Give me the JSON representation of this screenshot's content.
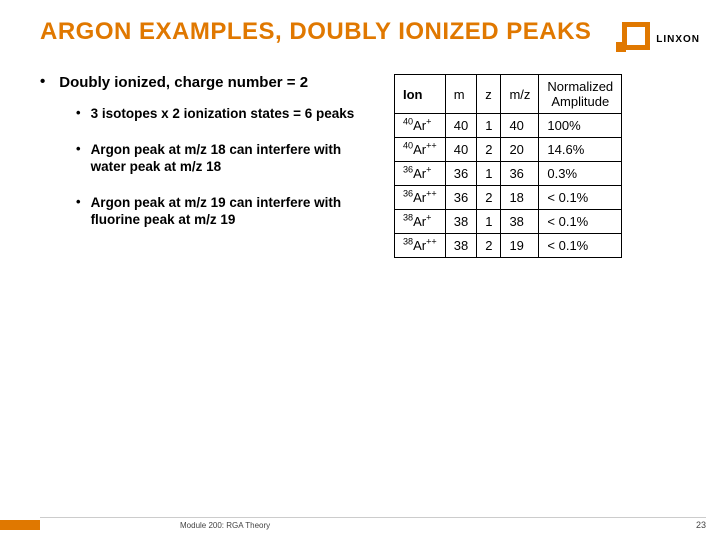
{
  "title": "ARGON EXAMPLES, DOUBLY IONIZED PEAKS",
  "logo_text": "LINXON",
  "lead": "Doubly ionized, charge number = 2",
  "bullets": [
    "3 isotopes x 2 ionization states = 6 peaks",
    "Argon peak at m/z 18 can interfere with water peak at  m/z 18",
    "Argon peak at m/z 19 can interfere with fluorine peak at m/z 19"
  ],
  "table": {
    "headers": {
      "ion": "Ion",
      "m": "m",
      "z": "z",
      "mz": "m/z",
      "amp_l1": "Normalized",
      "amp_l2": "Amplitude"
    },
    "rows": [
      {
        "mass": "40",
        "sym": "Ar",
        "charge": "+",
        "m": "40",
        "z": "1",
        "mz": "40",
        "amp": "100%"
      },
      {
        "mass": "40",
        "sym": "Ar",
        "charge": "++",
        "m": "40",
        "z": "2",
        "mz": "20",
        "amp": "14.6%"
      },
      {
        "mass": "36",
        "sym": "Ar",
        "charge": "+",
        "m": "36",
        "z": "1",
        "mz": "36",
        "amp": "0.3%"
      },
      {
        "mass": "36",
        "sym": "Ar",
        "charge": "++",
        "m": "36",
        "z": "2",
        "mz": "18",
        "amp": "< 0.1%"
      },
      {
        "mass": "38",
        "sym": "Ar",
        "charge": "+",
        "m": "38",
        "z": "1",
        "mz": "38",
        "amp": "< 0.1%"
      },
      {
        "mass": "38",
        "sym": "Ar",
        "charge": "++",
        "m": "38",
        "z": "2",
        "mz": "19",
        "amp": "< 0.1%"
      }
    ]
  },
  "footer": "Module 200: RGA Theory",
  "page": "23",
  "colors": {
    "accent": "#e07800"
  }
}
